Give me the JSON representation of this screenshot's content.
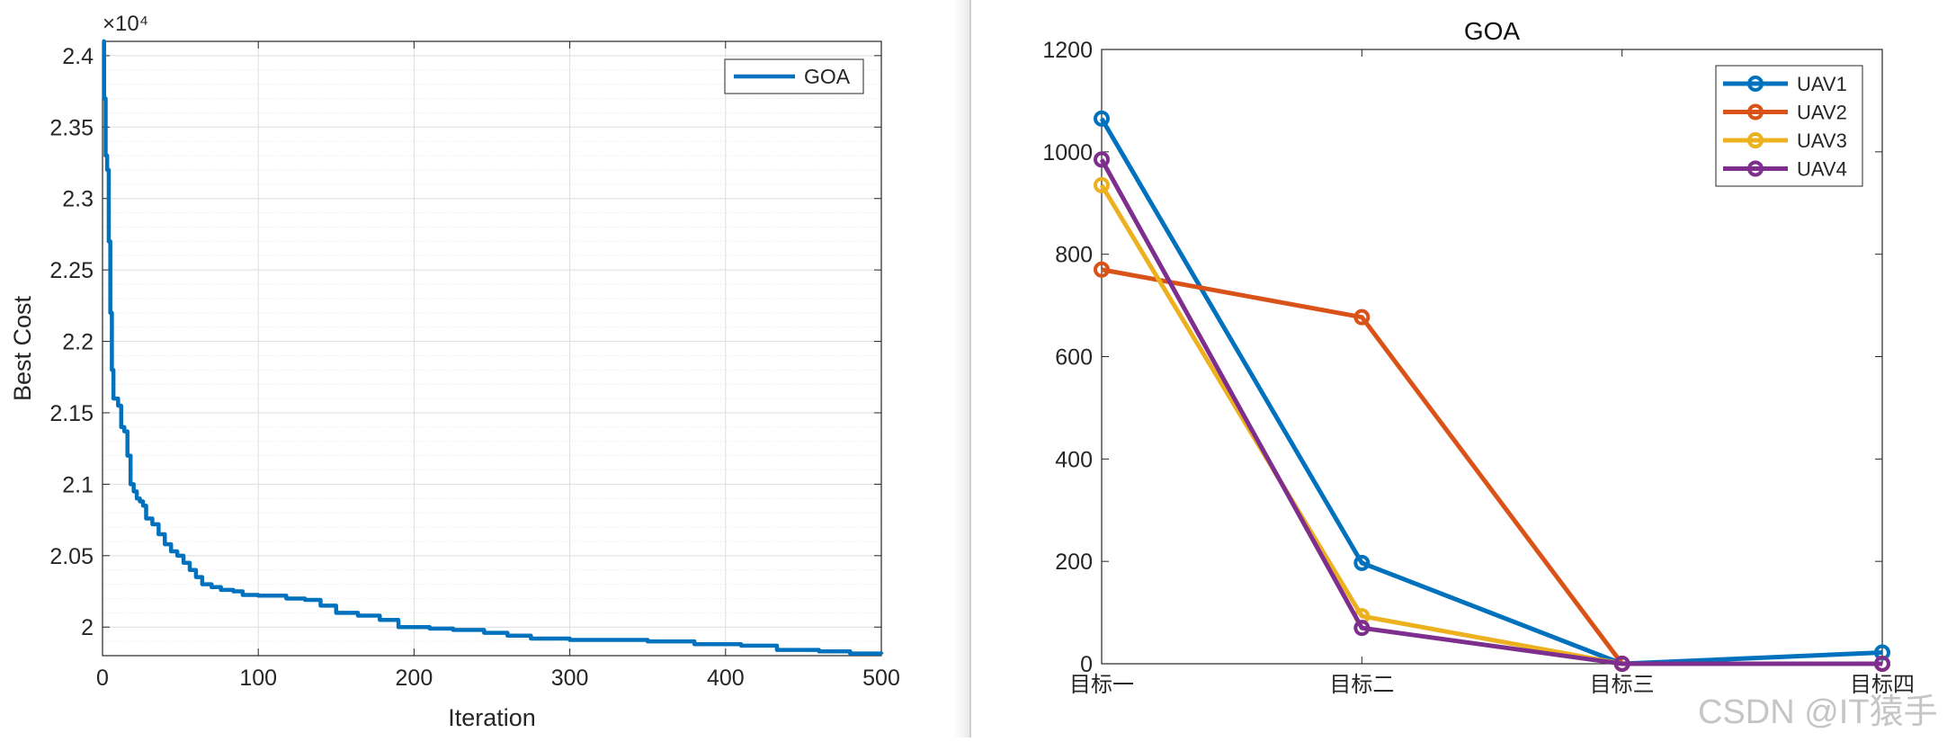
{
  "chart_data": [
    {
      "type": "line",
      "title": "",
      "xlabel": "Iteration",
      "ylabel": "Best Cost",
      "xlim": [
        0,
        500
      ],
      "ylim": [
        19800,
        24100
      ],
      "y_exponent_label": "×10⁴",
      "x_ticks": [
        0,
        100,
        200,
        300,
        400,
        500
      ],
      "x_tick_labels": [
        "0",
        "100",
        "200",
        "300",
        "400",
        "500"
      ],
      "y_ticks": [
        20000,
        20500,
        21000,
        21500,
        22000,
        22500,
        23000,
        23500,
        24000
      ],
      "y_tick_labels": [
        "2",
        "2.05",
        "2.1",
        "2.15",
        "2.2",
        "2.25",
        "2.3",
        "2.35",
        "2.4"
      ],
      "grid": true,
      "minor_grid": true,
      "legend_position": "top-right",
      "color": "#0072BD",
      "series": [
        {
          "name": "GOA",
          "points": [
            [
              0,
              24100
            ],
            [
              1,
              23700
            ],
            [
              2,
              23300
            ],
            [
              3,
              23200
            ],
            [
              4,
              22700
            ],
            [
              5,
              22200
            ],
            [
              6,
              21800
            ],
            [
              7,
              21600
            ],
            [
              10,
              21550
            ],
            [
              12,
              21400
            ],
            [
              14,
              21370
            ],
            [
              16,
              21200
            ],
            [
              18,
              21000
            ],
            [
              20,
              20950
            ],
            [
              22,
              20900
            ],
            [
              24,
              20880
            ],
            [
              26,
              20850
            ],
            [
              28,
              20760
            ],
            [
              32,
              20720
            ],
            [
              36,
              20650
            ],
            [
              40,
              20580
            ],
            [
              44,
              20530
            ],
            [
              48,
              20500
            ],
            [
              52,
              20450
            ],
            [
              56,
              20400
            ],
            [
              60,
              20350
            ],
            [
              64,
              20300
            ],
            [
              70,
              20280
            ],
            [
              76,
              20260
            ],
            [
              84,
              20250
            ],
            [
              90,
              20225
            ],
            [
              100,
              20220
            ],
            [
              118,
              20200
            ],
            [
              130,
              20190
            ],
            [
              140,
              20150
            ],
            [
              150,
              20100
            ],
            [
              164,
              20080
            ],
            [
              178,
              20050
            ],
            [
              190,
              20000
            ],
            [
              210,
              19990
            ],
            [
              225,
              19980
            ],
            [
              245,
              19960
            ],
            [
              260,
              19940
            ],
            [
              275,
              19920
            ],
            [
              300,
              19910
            ],
            [
              350,
              19900
            ],
            [
              380,
              19880
            ],
            [
              410,
              19870
            ],
            [
              433,
              19840
            ],
            [
              460,
              19830
            ],
            [
              480,
              19815
            ],
            [
              500,
              19810
            ]
          ]
        }
      ]
    },
    {
      "type": "line",
      "title": "GOA",
      "xlabel": "",
      "ylabel": "",
      "categories": [
        "目标一",
        "目标二",
        "目标三",
        "目标四"
      ],
      "ylim": [
        0,
        1200
      ],
      "y_ticks": [
        0,
        200,
        400,
        600,
        800,
        1000,
        1200
      ],
      "grid": false,
      "legend_position": "top-right",
      "marker": "circle",
      "series": [
        {
          "name": "UAV1",
          "color": "#0072BD",
          "values": [
            1065,
            197,
            0,
            22
          ]
        },
        {
          "name": "UAV2",
          "color": "#D95319",
          "values": [
            770,
            677,
            0,
            0
          ]
        },
        {
          "name": "UAV3",
          "color": "#EDB120",
          "values": [
            935,
            93,
            0,
            0
          ]
        },
        {
          "name": "UAV4",
          "color": "#7E2F8E",
          "values": [
            985,
            70,
            0,
            0
          ]
        }
      ]
    }
  ],
  "watermark": "CSDN @IT猿手"
}
